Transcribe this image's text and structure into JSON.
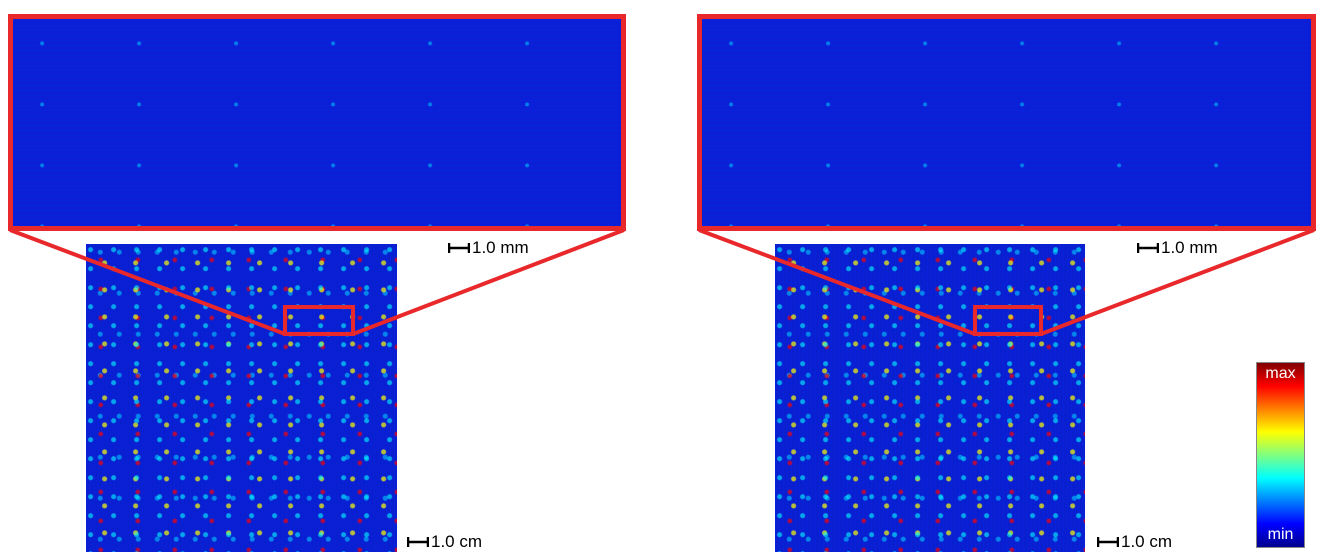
{
  "panels": [
    {
      "zoom_scale": "1.0 mm",
      "scale": "1.0 cm"
    },
    {
      "zoom_scale": "1.0 mm",
      "scale": "1.0 cm"
    }
  ],
  "colorbar": {
    "max": "max",
    "min": "min"
  }
}
